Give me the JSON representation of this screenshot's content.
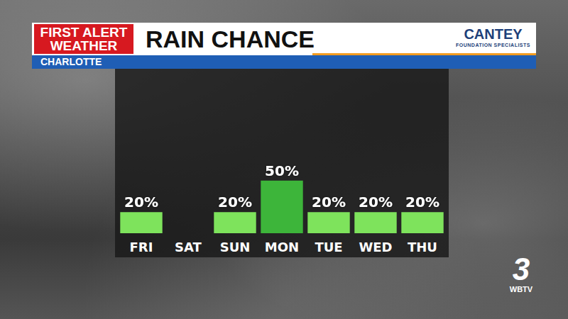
{
  "header": {
    "brand": [
      "FIRST ALERT",
      "WEATHER"
    ],
    "location": "CHARLOTTE",
    "sponsor": [
      "CANTEY",
      "FOUNDATION SPECIALISTS"
    ],
    "channel": "3",
    "station": "WBTV"
  },
  "chart_data": {
    "type": "bar",
    "title": "RAIN CHANCE",
    "categories": [
      "FRI",
      "SAT",
      "SUN",
      "MON",
      "TUE",
      "WED",
      "THU"
    ],
    "values": [
      20,
      null,
      20,
      50,
      20,
      20,
      20
    ],
    "value_labels": [
      "20%",
      null,
      "20%",
      "50%",
      "20%",
      "20%",
      "20%"
    ],
    "colors": [
      "#7ee35c",
      "#7ee35c",
      "#7ee35c",
      "#3db53a",
      "#7ee35c",
      "#7ee35c",
      "#7ee35c"
    ],
    "ylim": [
      0,
      140
    ],
    "grid": false,
    "data_labels": true,
    "tick_labels": "x"
  }
}
